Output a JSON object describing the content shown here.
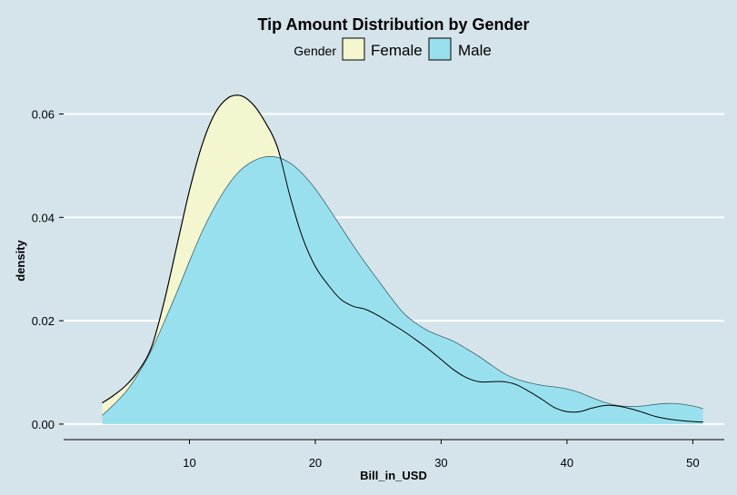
{
  "chart_data": {
    "type": "area",
    "title": "Tip Amount Distribution by Gender",
    "xlabel": "Bill_in_USD",
    "ylabel": "density",
    "xlim": [
      0,
      52.5
    ],
    "ylim": [
      -0.003,
      0.068
    ],
    "xticks": [
      10,
      20,
      30,
      40,
      50
    ],
    "yticks": [
      0.0,
      0.02,
      0.04,
      0.06
    ],
    "ytick_labels": [
      "0.00",
      "0.02",
      "0.04",
      "0.06"
    ],
    "grid": "horizontal major lines",
    "legend": {
      "title": "Gender",
      "position": "top"
    },
    "series": [
      {
        "name": "Female",
        "color": "#f3f6cf",
        "x": [
          3.07,
          4,
          5,
          6,
          7,
          8,
          9,
          10,
          11,
          12,
          13,
          14,
          15,
          16,
          17,
          18,
          19,
          20,
          21,
          22,
          23,
          24,
          25,
          26,
          27,
          28,
          29,
          30,
          31,
          32,
          33,
          34,
          35,
          36,
          37,
          38,
          39,
          40,
          41,
          42,
          43,
          44,
          45,
          46,
          47,
          48,
          49,
          50,
          50.81
        ],
        "y": [
          0.0041,
          0.0056,
          0.0076,
          0.0105,
          0.015,
          0.0238,
          0.0345,
          0.0452,
          0.054,
          0.06,
          0.063,
          0.0636,
          0.062,
          0.0585,
          0.0535,
          0.044,
          0.036,
          0.0305,
          0.027,
          0.0242,
          0.0228,
          0.0222,
          0.021,
          0.0195,
          0.018,
          0.0163,
          0.0145,
          0.0125,
          0.0105,
          0.009,
          0.0082,
          0.0082,
          0.0082,
          0.0076,
          0.0063,
          0.0048,
          0.0032,
          0.0024,
          0.0024,
          0.0031,
          0.0036,
          0.0035,
          0.003,
          0.0023,
          0.0015,
          0.001,
          0.0007,
          0.0005,
          0.0004
        ]
      },
      {
        "name": "Male",
        "color": "#99e0ee",
        "x": [
          3.07,
          4,
          5,
          6,
          7,
          8,
          9,
          10,
          11,
          12,
          13,
          14,
          15,
          16,
          17,
          18,
          19,
          20,
          21,
          22,
          23,
          24,
          25,
          26,
          27,
          28,
          29,
          30,
          31,
          32,
          33,
          34,
          35,
          36,
          37,
          38,
          39,
          40,
          41,
          42,
          43,
          44,
          45,
          46,
          47,
          48,
          49,
          50,
          50.81
        ],
        "y": [
          0.0017,
          0.0038,
          0.0064,
          0.01,
          0.0144,
          0.0198,
          0.0255,
          0.0315,
          0.0372,
          0.042,
          0.046,
          0.049,
          0.0508,
          0.0517,
          0.0516,
          0.0505,
          0.0484,
          0.0455,
          0.042,
          0.0383,
          0.0346,
          0.0311,
          0.0278,
          0.0245,
          0.0215,
          0.0195,
          0.018,
          0.017,
          0.016,
          0.0146,
          0.0131,
          0.0114,
          0.0098,
          0.0087,
          0.008,
          0.0075,
          0.0072,
          0.0068,
          0.0061,
          0.0051,
          0.0042,
          0.0036,
          0.0034,
          0.0035,
          0.0038,
          0.004,
          0.0039,
          0.0035,
          0.003
        ]
      }
    ]
  }
}
